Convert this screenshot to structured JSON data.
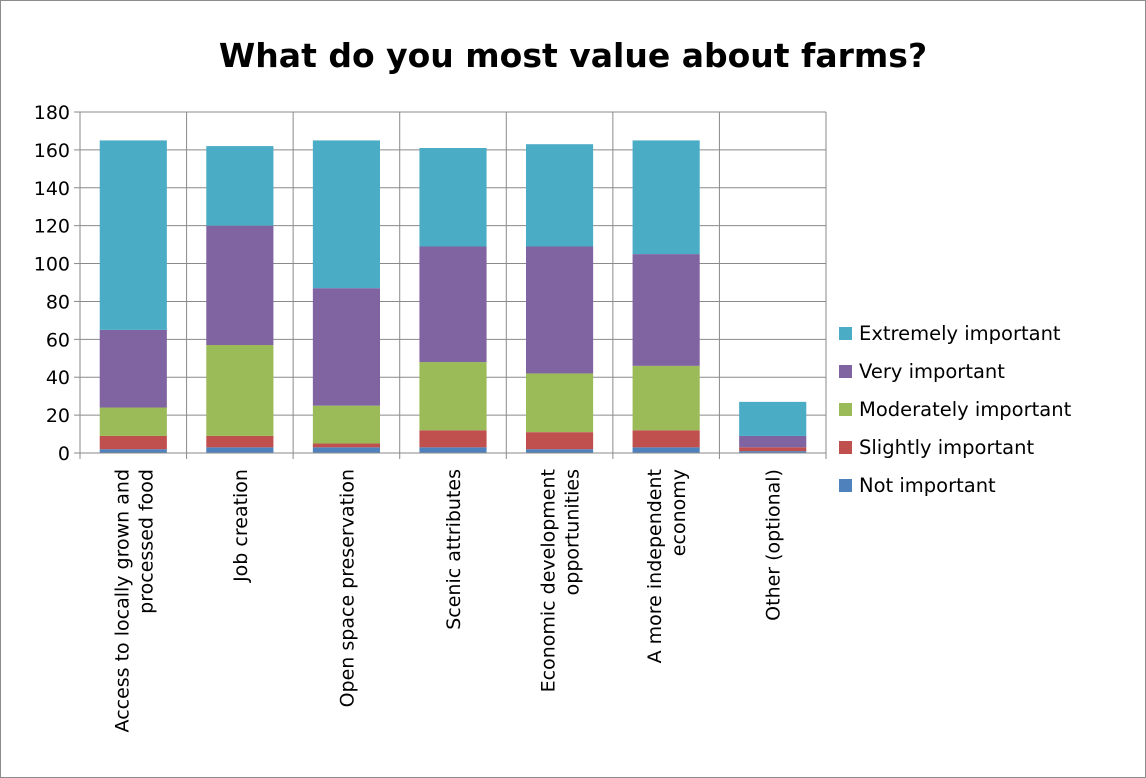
{
  "chart_data": {
    "type": "bar",
    "stacked": true,
    "title": "What do you most value about farms?",
    "xlabel": "",
    "ylabel": "",
    "ylim": [
      0,
      180
    ],
    "yticks": [
      0,
      20,
      40,
      60,
      80,
      100,
      120,
      140,
      160,
      180
    ],
    "grid": true,
    "legend_position": "right",
    "categories": [
      [
        "Access to locally grown and",
        "processed food"
      ],
      [
        "Job creation"
      ],
      [
        "Open space preservation"
      ],
      [
        "Scenic attributes"
      ],
      [
        "Economic development",
        "opportunities"
      ],
      [
        "A more independent",
        "economy"
      ],
      [
        "Other (optional)"
      ]
    ],
    "series": [
      {
        "name": "Not important",
        "color": "#4f81bd",
        "values": [
          2,
          3,
          3,
          3,
          2,
          3,
          1
        ]
      },
      {
        "name": "Slightly important",
        "color": "#c0504d",
        "values": [
          7,
          6,
          2,
          9,
          9,
          9,
          2
        ]
      },
      {
        "name": "Moderately important",
        "color": "#9bbb59",
        "values": [
          15,
          48,
          20,
          36,
          31,
          34,
          0
        ]
      },
      {
        "name": "Very important",
        "color": "#8064a2",
        "values": [
          41,
          63,
          62,
          61,
          67,
          59,
          6
        ]
      },
      {
        "name": "Extremely important",
        "color": "#4bacc6",
        "values": [
          100,
          42,
          78,
          52,
          54,
          60,
          18
        ]
      }
    ]
  }
}
